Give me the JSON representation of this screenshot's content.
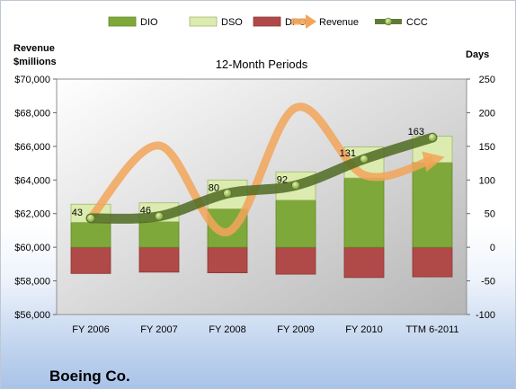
{
  "chart_data": {
    "type": "bar",
    "subtitle": "12-Month Periods",
    "company": "Boeing Co.",
    "categories": [
      "FY 2006",
      "FY 2007",
      "FY 2008",
      "FY 2009",
      "FY 2010",
      "TTM 6-2011"
    ],
    "left_axis": {
      "title_lines": [
        "Revenue",
        "$millions"
      ],
      "ticks": [
        "$56,000",
        "$58,000",
        "$60,000",
        "$62,000",
        "$64,000",
        "$66,000",
        "$68,000",
        "$70,000"
      ],
      "ylim": [
        56000,
        70000
      ]
    },
    "right_axis": {
      "title": "Days",
      "ticks": [
        "-100",
        "-50",
        "0",
        "50",
        "100",
        "150",
        "200",
        "250"
      ],
      "ylim": [
        -100,
        250
      ]
    },
    "series": [
      {
        "name": "DIO",
        "axis": "right",
        "kind": "stacked-bar",
        "color": "#7fa83a",
        "values": [
          37,
          38,
          57,
          70,
          103,
          126
        ]
      },
      {
        "name": "DSO",
        "axis": "right",
        "kind": "stacked-bar",
        "color": "#dcecb0",
        "values": [
          27,
          28,
          43,
          42,
          46,
          39
        ]
      },
      {
        "name": "DPO",
        "axis": "right",
        "kind": "stacked-bar-negative",
        "color": "#b04a48",
        "values": [
          -39,
          -37,
          -38,
          -40,
          -45,
          -44
        ]
      },
      {
        "name": "Revenue",
        "axis": "left",
        "kind": "line",
        "color": "#f2a55a",
        "values": [
          61750,
          66050,
          60900,
          68300,
          64300,
          65200
        ]
      },
      {
        "name": "CCC",
        "axis": "right",
        "kind": "line",
        "color": "#4f6b22",
        "values": [
          43,
          46,
          80,
          92,
          131,
          163
        ]
      }
    ],
    "legend_position": "top",
    "grid": false
  }
}
